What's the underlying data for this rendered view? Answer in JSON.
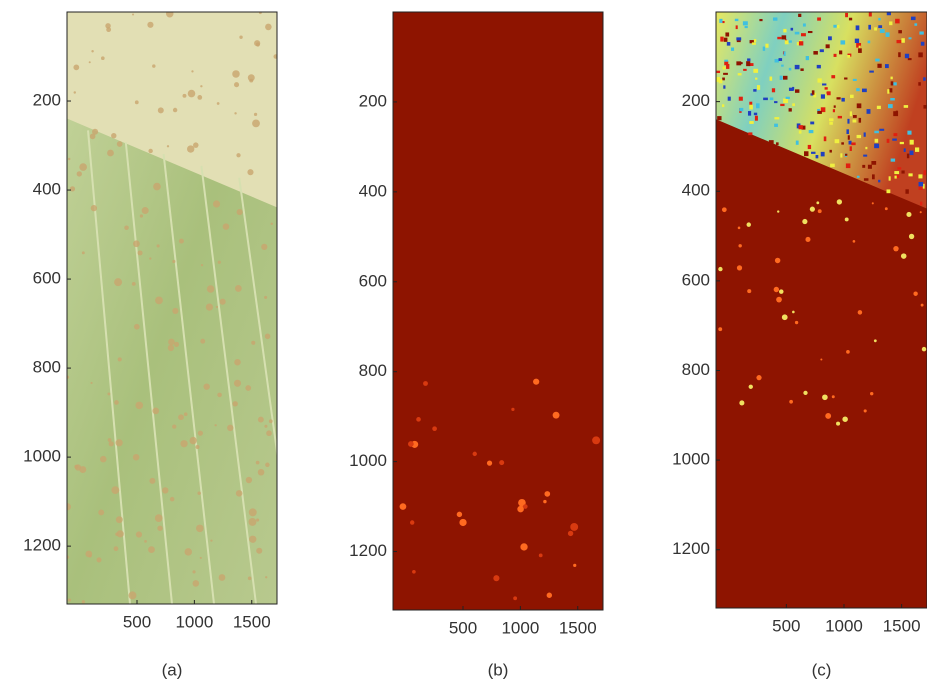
{
  "panels": [
    {
      "caption": "(a)",
      "xlim": [
        -110,
        1720
      ],
      "ylim": [
        0,
        1330
      ],
      "xticks": [
        500,
        1000,
        1500
      ],
      "yticks": [
        200,
        400,
        600,
        800,
        1000,
        1200
      ]
    },
    {
      "caption": "(b)",
      "xlim": [
        -110,
        1720
      ],
      "ylim": [
        0,
        1330
      ],
      "xticks": [
        500,
        1000,
        1500
      ],
      "yticks": [
        200,
        400,
        600,
        800,
        1000,
        1200
      ]
    },
    {
      "caption": "(c)",
      "xlim": [
        -110,
        1720
      ],
      "ylim": [
        0,
        1330
      ],
      "xticks": [
        500,
        1000,
        1500
      ],
      "yticks": [
        200,
        400,
        600,
        800,
        1000,
        1200
      ]
    }
  ]
}
